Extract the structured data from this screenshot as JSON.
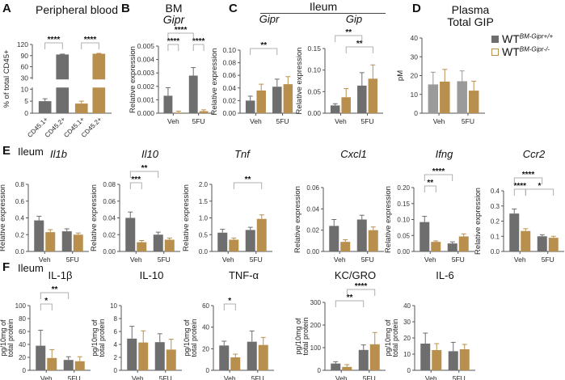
{
  "labels": {
    "A": "A",
    "B": "B",
    "C": "C",
    "D": "D",
    "E": "E",
    "F": "F",
    "a_title": "Peripheral blood",
    "b_title": "BM",
    "b_sub": "Gipr",
    "c_title": "Ileum",
    "d_title": "Plasma",
    "d_sub": "Total GIP",
    "e_tissue": "Ileum",
    "f_tissue": "Ileum"
  },
  "legend": [
    {
      "base": "WT",
      "sup": "BM-Gipr+/+",
      "style": "filled"
    },
    {
      "base": "WT",
      "sup": "BM-Gipr-/-",
      "style": "outline"
    }
  ],
  "colors": {
    "wt": "#6e6e6e",
    "ko": "#b98f4e",
    "d_wt": "#9a9a9a"
  },
  "chart_data": [
    {
      "id": "A",
      "type": "bar",
      "title": "",
      "ylabel": "% of total CD45+",
      "yticks": [
        "0",
        "5",
        "10",
        "30",
        "60",
        "90",
        "120"
      ],
      "axis_break": [
        10,
        30
      ],
      "categories": [
        "CD45.1+",
        "CD45.2+",
        "CD45.1+",
        "CD45.2+"
      ],
      "values": [
        5,
        93,
        4,
        95
      ],
      "errors": [
        1,
        1,
        1,
        1
      ],
      "bar_colors": [
        "wt",
        "wt",
        "ko",
        "ko"
      ],
      "sig": [
        {
          "a": 0,
          "b": 1,
          "label": "****"
        },
        {
          "a": 2,
          "b": 3,
          "label": "****"
        }
      ]
    },
    {
      "id": "B",
      "type": "bar",
      "title": "",
      "ylabel": "Relative expression",
      "yticks": [
        "0.000",
        "0.001",
        "0.002",
        "0.003",
        "0.004",
        "0.005"
      ],
      "groups": [
        "Veh",
        "5FU"
      ],
      "values": [
        0.0013,
        5e-05,
        0.0028,
        0.00015
      ],
      "errors": [
        0.0006,
        0.0001,
        0.0006,
        0.0001
      ],
      "sig": [
        {
          "a": 0,
          "b": 1,
          "label": "****"
        },
        {
          "a": 2,
          "b": 3,
          "label": "****"
        },
        {
          "a": 0,
          "b": 2,
          "label": "****"
        }
      ]
    },
    {
      "id": "C1",
      "type": "bar",
      "title": "Gipr",
      "ylabel": "Relative expression",
      "yticks": [
        "0.00",
        "0.02",
        "0.04",
        "0.06",
        "0.08",
        "0.10"
      ],
      "groups": [
        "Veh",
        "5FU"
      ],
      "values": [
        0.02,
        0.036,
        0.042,
        0.046
      ],
      "errors": [
        0.007,
        0.01,
        0.012,
        0.012
      ],
      "sig": [
        {
          "a": 0,
          "b": 2,
          "label": "**"
        }
      ]
    },
    {
      "id": "C2",
      "type": "bar",
      "title": "Gip",
      "ylabel": "Relative expression",
      "yticks": [
        "0.00",
        "0.05",
        "0.10",
        "0.15"
      ],
      "groups": [
        "Veh",
        "5FU"
      ],
      "values": [
        0.018,
        0.037,
        0.064,
        0.08
      ],
      "errors": [
        0.004,
        0.02,
        0.03,
        0.032
      ],
      "sig": [
        {
          "a": 1,
          "b": 3,
          "label": "**"
        },
        {
          "a": 0,
          "b": 2,
          "label": "**"
        }
      ]
    },
    {
      "id": "D",
      "type": "bar",
      "title": "",
      "ylabel": "pM",
      "yticks": [
        "0",
        "10",
        "20",
        "30",
        "40"
      ],
      "groups": [
        "Veh",
        "5FU"
      ],
      "values": [
        15.3,
        16.8,
        17,
        12
      ],
      "errors": [
        6.5,
        6.5,
        5.5,
        5
      ],
      "sig": []
    },
    {
      "id": "E1",
      "type": "bar",
      "title": "Il1b",
      "ylabel": "Relative expression",
      "yticks": [
        "0.0",
        "0.2",
        "0.4",
        "0.6",
        "0.8"
      ],
      "groups": [
        "Veh",
        "5FU"
      ],
      "values": [
        0.37,
        0.23,
        0.24,
        0.2
      ],
      "errors": [
        0.05,
        0.03,
        0.03,
        0.02
      ],
      "sig": []
    },
    {
      "id": "E2",
      "type": "bar",
      "title": "Il10",
      "ylabel": "Relative expression",
      "yticks": [
        "0.00",
        "0.02",
        "0.04",
        "0.06",
        "0.08"
      ],
      "groups": [
        "Veh",
        "5FU"
      ],
      "values": [
        0.04,
        0.011,
        0.02,
        0.014
      ],
      "errors": [
        0.007,
        0.002,
        0.003,
        0.002
      ],
      "sig": [
        {
          "a": 0,
          "b": 1,
          "label": "***"
        },
        {
          "a": 0,
          "b": 2,
          "label": "**"
        }
      ]
    },
    {
      "id": "E3",
      "type": "bar",
      "title": "Tnf",
      "ylabel": "Relative expression",
      "yticks": [
        "0.0",
        "0.5",
        "1.0",
        "1.5",
        "2.0"
      ],
      "groups": [
        "Veh",
        "5FU"
      ],
      "values": [
        0.56,
        0.35,
        0.64,
        0.97
      ],
      "errors": [
        0.1,
        0.05,
        0.08,
        0.12
      ],
      "sig": [
        {
          "a": 1,
          "b": 3,
          "label": "**"
        }
      ]
    },
    {
      "id": "E4",
      "type": "bar",
      "title": "Cxcl1",
      "ylabel": "Relative expression",
      "yticks": [
        "0.00",
        "0.02",
        "0.04",
        "0.06"
      ],
      "groups": [
        "Veh",
        "5FU"
      ],
      "values": [
        0.024,
        0.009,
        0.03,
        0.02
      ],
      "errors": [
        0.006,
        0.002,
        0.004,
        0.003
      ],
      "sig": []
    },
    {
      "id": "E5",
      "type": "bar",
      "title": "Ifng",
      "ylabel": "Relative expression",
      "yticks": [
        "0.00",
        "0.05",
        "0.10",
        "0.15",
        "0.20"
      ],
      "groups": [
        "Veh",
        "5FU"
      ],
      "values": [
        0.092,
        0.03,
        0.025,
        0.047
      ],
      "errors": [
        0.018,
        0.003,
        0.005,
        0.008
      ],
      "sig": [
        {
          "a": 0,
          "b": 1,
          "label": "**"
        },
        {
          "a": 0,
          "b": 2,
          "label": "****"
        }
      ]
    },
    {
      "id": "E6",
      "type": "bar",
      "title": "Ccr2",
      "ylabel": "Relative expression",
      "yticks": [
        "0.0",
        "0.1",
        "0.2",
        "0.3",
        "0.4"
      ],
      "groups": [
        "Veh",
        "5FU"
      ],
      "values": [
        0.25,
        0.135,
        0.1,
        0.09
      ],
      "errors": [
        0.03,
        0.015,
        0.01,
        0.01
      ],
      "sig": [
        {
          "a": 0,
          "b": 1,
          "label": "****"
        },
        {
          "a": 1,
          "b": 3,
          "label": "*"
        },
        {
          "a": 0,
          "b": 2,
          "label": "****"
        }
      ]
    },
    {
      "id": "F1",
      "type": "bar",
      "title": "IL-1β",
      "ylabel": "pg/10mg of total protein",
      "yticks": [
        "0",
        "20",
        "40",
        "60",
        "80",
        "100"
      ],
      "groups": [
        "Veh",
        "5FU"
      ],
      "values": [
        38,
        19,
        16,
        14
      ],
      "errors": [
        24,
        13,
        5,
        7
      ],
      "sig": [
        {
          "a": 0,
          "b": 1,
          "label": "*"
        },
        {
          "a": 0,
          "b": 2,
          "label": "**"
        }
      ]
    },
    {
      "id": "F2",
      "type": "bar",
      "title": "IL-10",
      "ylabel": "pg/10mg of total protein",
      "yticks": [
        "0",
        "2",
        "4",
        "6",
        "8",
        "10"
      ],
      "groups": [
        "Veh",
        "5FU"
      ],
      "values": [
        4.9,
        4.3,
        4.35,
        3.2
      ],
      "errors": [
        1.9,
        1.8,
        1.3,
        1.6
      ],
      "sig": []
    },
    {
      "id": "F3",
      "type": "bar",
      "title": "TNF-α",
      "ylabel": "pg/10mg of total protein",
      "yticks": [
        "0",
        "20",
        "40",
        "60"
      ],
      "groups": [
        "Veh",
        "5FU"
      ],
      "values": [
        23,
        12,
        26.5,
        23.5
      ],
      "errors": [
        4,
        3,
        10,
        7
      ],
      "sig": [
        {
          "a": 0,
          "b": 1,
          "label": "*"
        }
      ]
    },
    {
      "id": "F4",
      "type": "bar",
      "title": "KC/GRO",
      "ylabel": "pg/10mg of total protein",
      "yticks": [
        "0",
        "100",
        "200",
        "300"
      ],
      "groups": [
        "Veh",
        "5FU"
      ],
      "values": [
        30,
        15,
        90,
        115
      ],
      "errors": [
        8,
        10,
        22,
        52
      ],
      "sig": [
        {
          "a": 0,
          "b": 2,
          "label": "**"
        },
        {
          "a": 1,
          "b": 3,
          "label": "****"
        }
      ]
    },
    {
      "id": "F5",
      "type": "bar",
      "title": "IL-6",
      "ylabel": "pg/10mg of total protein",
      "yticks": [
        "0",
        "10",
        "20",
        "30",
        "40"
      ],
      "groups": [
        "Veh",
        "5FU"
      ],
      "values": [
        16.5,
        12.5,
        11.8,
        13
      ],
      "errors": [
        6.5,
        4,
        5.5,
        3
      ],
      "sig": []
    }
  ]
}
